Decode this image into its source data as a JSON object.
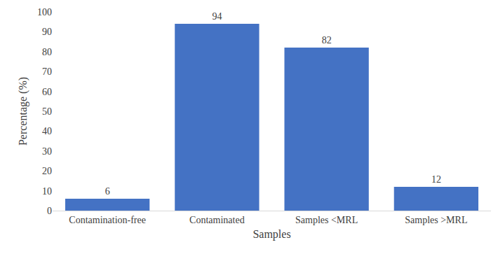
{
  "chart_data": {
    "type": "bar",
    "x_label": "Samples",
    "y_label": "Percentage (%)",
    "categories": [
      "Contamination-free",
      "Contaminated",
      "Samples <MRL",
      "Samples >MRL"
    ],
    "values": [
      6,
      94,
      82,
      12
    ],
    "color": "#4472c4",
    "ylim": [
      0,
      100
    ],
    "yticks": [
      0,
      10,
      20,
      30,
      40,
      50,
      60,
      70,
      80,
      90,
      100
    ],
    "grid": false,
    "data_labels": true
  }
}
